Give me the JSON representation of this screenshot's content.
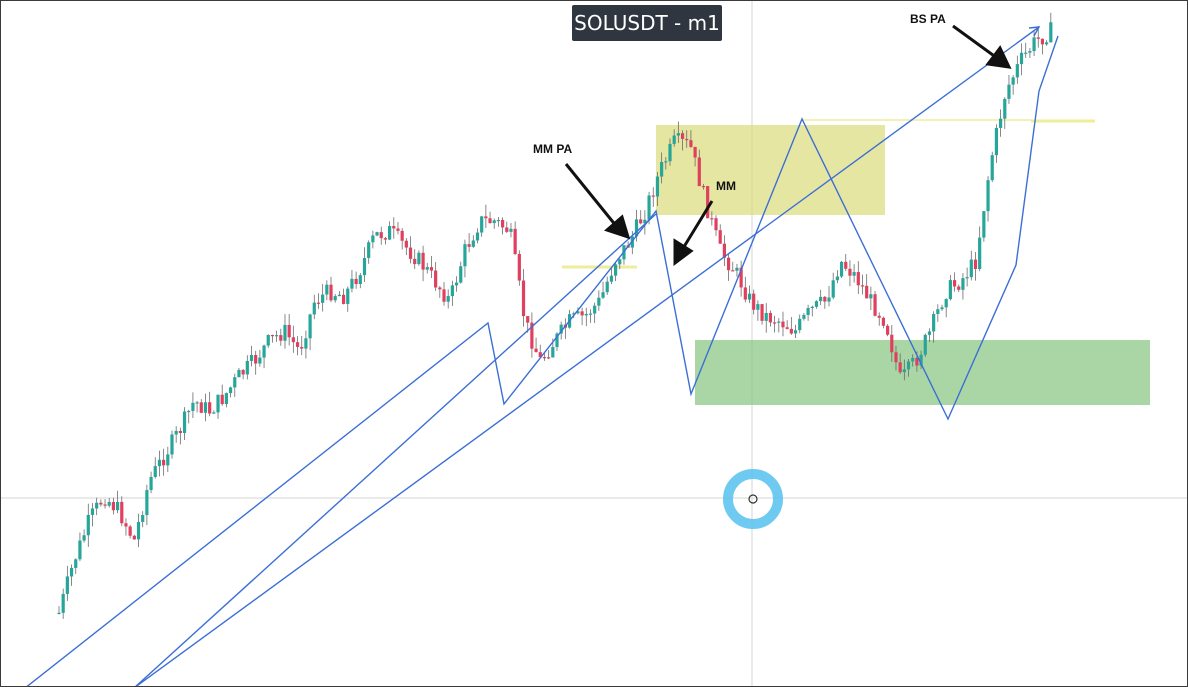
{
  "window": {
    "title": "SOLUSDT - m1"
  },
  "annotations": {
    "mm_pa": "MM PA",
    "mm": "MM",
    "bs_pa": "BS PA"
  },
  "colors": {
    "up_candle": "#26a69a",
    "down_candle": "#e0405e",
    "wick": "#6b6b6b",
    "trendline": "#3c6fd6",
    "supply_zone": "#d9d97a",
    "demand_zone": "#8ec98a",
    "level_line": "#f0f0a0",
    "crosshair": "#d0d0d0",
    "cursor_ring": "#5ec4f0",
    "title_bg": "#2f3640"
  },
  "chart_data": {
    "type": "candlestick",
    "symbol": "SOLUSDT",
    "timeframe": "m1",
    "price_path": [
      612,
      560,
      520,
      495,
      510,
      540,
      480,
      455,
      430,
      400,
      410,
      395,
      375,
      360,
      340,
      330,
      350,
      300,
      290,
      295,
      270,
      235,
      230,
      245,
      260,
      280,
      300,
      250,
      220,
      220,
      230,
      320,
      360,
      340,
      320,
      315,
      300,
      260,
      240,
      210,
      170,
      140,
      145,
      200,
      250,
      270,
      300,
      315,
      320,
      330,
      310,
      300,
      260,
      275,
      300,
      320,
      380,
      360,
      330,
      290,
      280,
      260,
      160,
      90,
      60,
      40,
      30
    ],
    "zones": [
      {
        "type": "supply",
        "color": "yellow"
      },
      {
        "type": "demand",
        "color": "green"
      }
    ],
    "indicators": [
      "trendlines",
      "zigzag"
    ]
  }
}
